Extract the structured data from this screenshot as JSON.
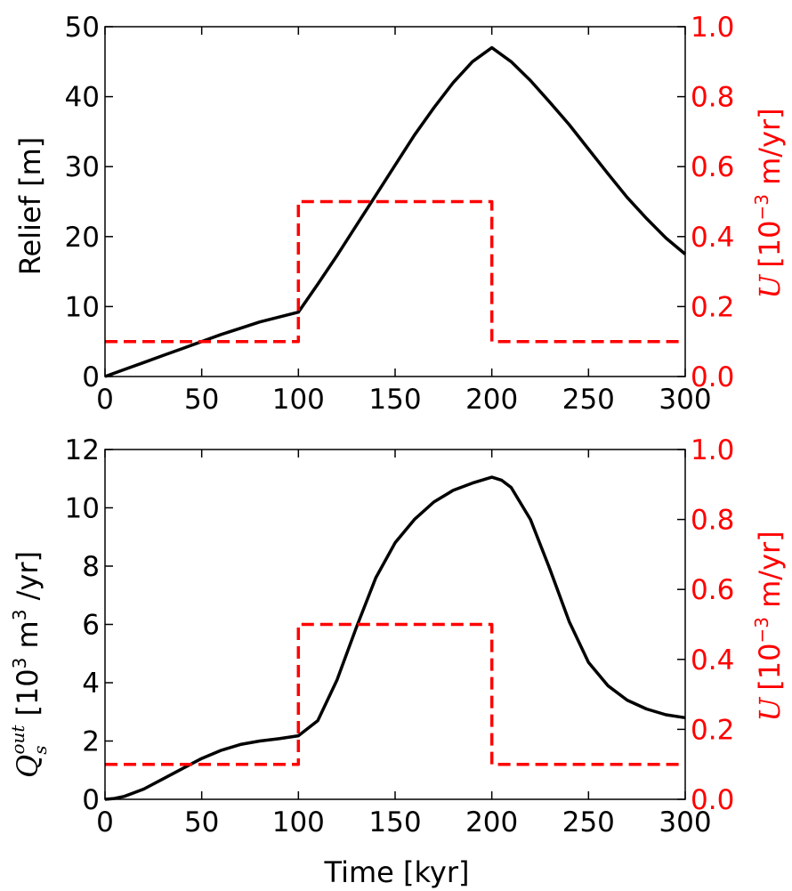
{
  "figure": {
    "xlabel": "Time [kyr]",
    "right_color": "#ff0000",
    "left_color": "#000000"
  },
  "chart_data": [
    {
      "type": "line",
      "xlim": [
        0,
        300
      ],
      "ylim": [
        0,
        50
      ],
      "y2lim": [
        0,
        1.0
      ],
      "x_ticks": [
        "0",
        "50",
        "100",
        "150",
        "200",
        "250",
        "300"
      ],
      "y_ticks": [
        "0",
        "10",
        "20",
        "30",
        "40",
        "50"
      ],
      "y2_ticks": [
        "0.0",
        "0.2",
        "0.4",
        "0.6",
        "0.8",
        "1.0"
      ],
      "ylabel": "Relief [m]",
      "y2label": {
        "var": "U",
        "base": "[10",
        "exp": "−3",
        "unit": " m/yr]"
      },
      "series": [
        {
          "axis": "left",
          "color": "#000000",
          "style": "solid",
          "x": [
            0,
            10,
            20,
            30,
            40,
            50,
            60,
            70,
            80,
            90,
            100,
            110,
            120,
            130,
            140,
            150,
            160,
            170,
            180,
            190,
            200,
            210,
            220,
            230,
            240,
            250,
            260,
            270,
            280,
            290,
            300
          ],
          "y": [
            0,
            1.0,
            2.0,
            3.0,
            4.0,
            5.0,
            6.0,
            6.9,
            7.8,
            8.5,
            9.2,
            13.2,
            17.3,
            21.6,
            25.9,
            30.2,
            34.5,
            38.4,
            42.0,
            45.0,
            47.0,
            45.0,
            42.3,
            39.2,
            36.0,
            32.5,
            29.0,
            25.6,
            22.6,
            19.8,
            17.5
          ]
        },
        {
          "axis": "right",
          "color": "#ff0000",
          "style": "dashed",
          "x": [
            0,
            100,
            100,
            200,
            200,
            300
          ],
          "y": [
            0.1,
            0.1,
            0.5,
            0.5,
            0.1,
            0.1
          ]
        }
      ]
    },
    {
      "type": "line",
      "xlim": [
        0,
        300
      ],
      "ylim": [
        0,
        12
      ],
      "y2lim": [
        0,
        1.0
      ],
      "x_ticks": [
        "0",
        "50",
        "100",
        "150",
        "200",
        "250",
        "300"
      ],
      "y_ticks": [
        "0",
        "2",
        "4",
        "6",
        "8",
        "10",
        "12"
      ],
      "y2_ticks": [
        "0.0",
        "0.2",
        "0.4",
        "0.6",
        "0.8",
        "1.0"
      ],
      "xlabel": "Time [kyr]",
      "ylabel": {
        "var": "Q",
        "sub": "s",
        "sup": "out",
        "base": "[10",
        "exp": "3",
        "unit": " m",
        "exp2": "3",
        "tail": " /yr]"
      },
      "y2label": {
        "var": "U",
        "base": "[10",
        "exp": "−3",
        "unit": " m/yr]"
      },
      "series": [
        {
          "axis": "left",
          "color": "#000000",
          "style": "solid",
          "x": [
            0,
            5,
            10,
            20,
            30,
            40,
            50,
            60,
            70,
            80,
            90,
            100,
            110,
            120,
            130,
            140,
            150,
            160,
            170,
            180,
            190,
            200,
            205,
            210,
            220,
            230,
            240,
            250,
            260,
            270,
            280,
            290,
            300
          ],
          "y": [
            0,
            0.03,
            0.1,
            0.35,
            0.7,
            1.05,
            1.4,
            1.68,
            1.88,
            2.0,
            2.08,
            2.18,
            2.7,
            4.1,
            5.9,
            7.6,
            8.8,
            9.6,
            10.2,
            10.6,
            10.85,
            11.05,
            10.95,
            10.7,
            9.6,
            7.9,
            6.1,
            4.7,
            3.9,
            3.4,
            3.1,
            2.9,
            2.8
          ]
        },
        {
          "axis": "right",
          "color": "#ff0000",
          "style": "dashed",
          "x": [
            0,
            100,
            100,
            200,
            200,
            300
          ],
          "y": [
            0.1,
            0.1,
            0.5,
            0.5,
            0.1,
            0.1
          ]
        }
      ]
    }
  ]
}
